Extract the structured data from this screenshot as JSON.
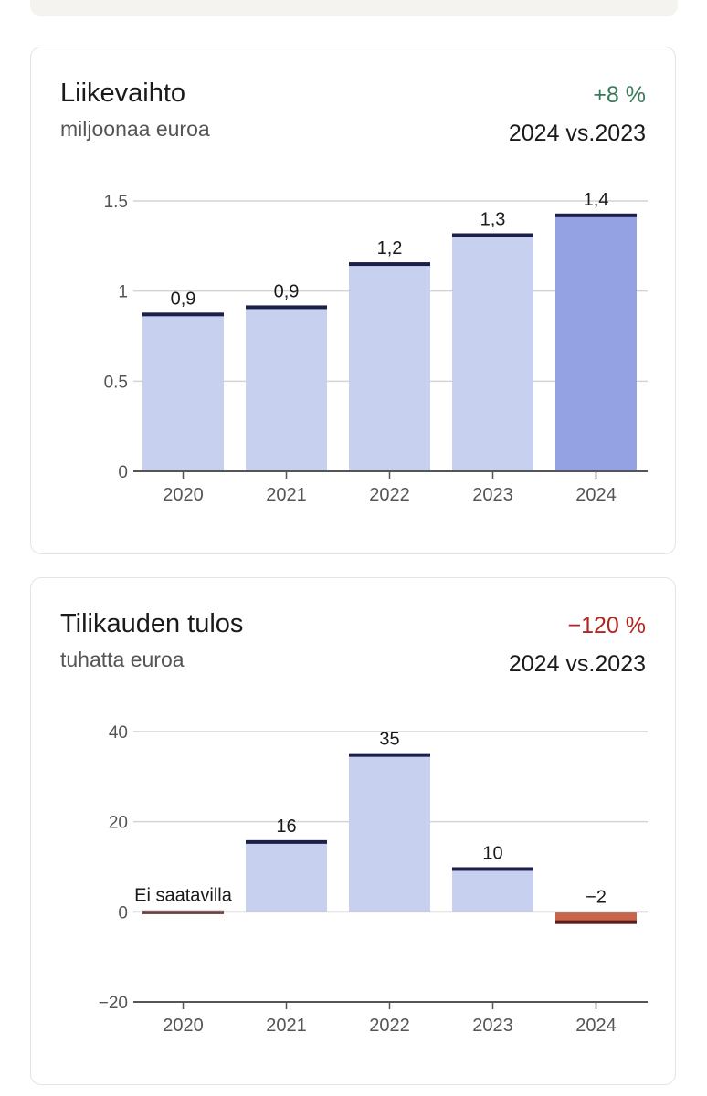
{
  "charts": [
    {
      "title": "Liikevaihto",
      "subtitle": "miljoonaa euroa",
      "change": "+8 %",
      "change_color": "#3a7a5a",
      "period": "2024 vs.2023"
    },
    {
      "title": "Tilikauden tulos",
      "subtitle": "tuhatta euroa",
      "change": "−120 %",
      "change_color": "#b3261e",
      "period": "2024 vs.2023"
    }
  ],
  "chart_data": [
    {
      "type": "bar",
      "categories": [
        "2020",
        "2021",
        "2022",
        "2023",
        "2024"
      ],
      "values": [
        0.87,
        0.91,
        1.15,
        1.31,
        1.42
      ],
      "data_labels": [
        "0,9",
        "0,9",
        "1,2",
        "1,3",
        "1,4"
      ],
      "yticks": [
        0,
        0.5,
        1,
        1.5
      ],
      "ytick_labels": [
        "0",
        "0.5",
        "1",
        "1.5"
      ],
      "ylim": [
        0,
        1.5
      ],
      "grid": true,
      "highlight_index": 4,
      "colors": {
        "bar": "#c8d0f0",
        "highlight": "#94a1e2",
        "cap": "#1c1f4a"
      }
    },
    {
      "type": "bar",
      "categories": [
        "2020",
        "2021",
        "2022",
        "2023",
        "2024"
      ],
      "values": [
        null,
        15.5,
        34.8,
        9.5,
        -2.3
      ],
      "data_labels": [
        "Ei saatavilla",
        "16",
        "35",
        "10",
        "−2"
      ],
      "yticks": [
        -20,
        0,
        20,
        40
      ],
      "ytick_labels": [
        "−20",
        "0",
        "20",
        "40"
      ],
      "ylim": [
        -20,
        40
      ],
      "grid": true,
      "colors": {
        "bar": "#c8d0f0",
        "cap": "#1c1f4a",
        "negative": "#c8654a",
        "negative_cap": "#5a1e1e",
        "missing": "#6b2b2b"
      }
    }
  ]
}
